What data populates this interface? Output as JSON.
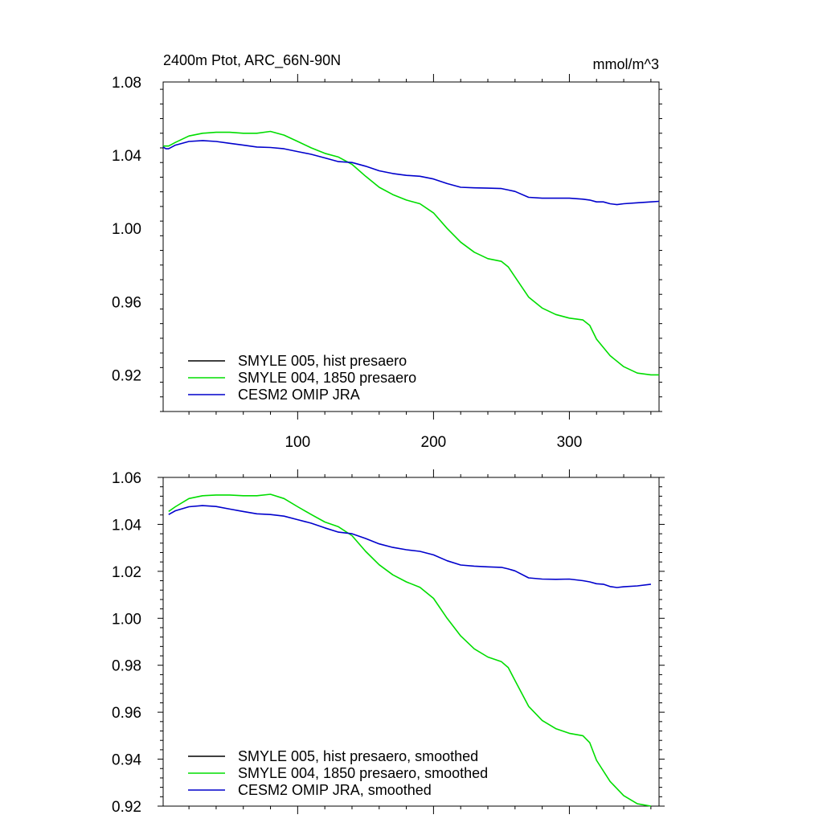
{
  "chart_data": [
    {
      "type": "line",
      "title": "2400m Ptot, ARC_66N-90N",
      "units": "mmol/m^3",
      "xlabel": "",
      "ylabel": "",
      "xlim": [
        1,
        366
      ],
      "ylim": [
        0.9,
        1.08
      ],
      "xticks": [
        100,
        200,
        300
      ],
      "xtick_labels": [
        "100",
        "200",
        "300"
      ],
      "yticks": [
        0.92,
        0.96,
        1.0,
        1.04,
        1.08
      ],
      "ytick_labels": [
        "0.92",
        "0.96",
        "1.00",
        "1.04",
        "1.08"
      ],
      "legend_position": "bottom-left",
      "series": [
        {
          "name": "SMYLE 005, hist presaero",
          "color": "#000000",
          "x": [],
          "y": []
        },
        {
          "name": "SMYLE 004, 1850 presaero",
          "color": "#00dd00",
          "x": [
            1,
            5,
            10,
            20,
            30,
            40,
            50,
            60,
            70,
            80,
            90,
            100,
            110,
            120,
            130,
            140,
            150,
            160,
            170,
            180,
            190,
            200,
            210,
            220,
            230,
            240,
            250,
            255,
            260,
            270,
            280,
            290,
            300,
            310,
            315,
            320,
            330,
            340,
            350,
            360,
            366
          ],
          "y": [
            1.045,
            1.045,
            1.047,
            1.0505,
            1.052,
            1.0525,
            1.0525,
            1.052,
            1.052,
            1.053,
            1.051,
            1.0475,
            1.044,
            1.041,
            1.039,
            1.035,
            1.0285,
            1.0225,
            1.0185,
            1.0155,
            1.0135,
            1.0085,
            1.0,
            0.9925,
            0.987,
            0.9835,
            0.982,
            0.979,
            0.9735,
            0.9625,
            0.9565,
            0.953,
            0.951,
            0.95,
            0.947,
            0.9395,
            0.9305,
            0.9245,
            0.921,
            0.92,
            0.92
          ]
        },
        {
          "name": "CESM2 OMIP JRA",
          "color": "#0000cc",
          "x": [
            1,
            3,
            5,
            10,
            20,
            30,
            40,
            50,
            60,
            70,
            80,
            90,
            100,
            110,
            120,
            130,
            140,
            150,
            160,
            170,
            180,
            190,
            200,
            210,
            220,
            230,
            240,
            250,
            255,
            260,
            270,
            280,
            290,
            300,
            310,
            315,
            320,
            325,
            330,
            335,
            340,
            350,
            360,
            366
          ],
          "y": [
            1.0445,
            1.0435,
            1.0435,
            1.0455,
            1.0475,
            1.048,
            1.0475,
            1.0465,
            1.0455,
            1.0445,
            1.0442,
            1.0435,
            1.042,
            1.0405,
            1.0385,
            1.0365,
            1.036,
            1.034,
            1.0315,
            1.03,
            1.029,
            1.0285,
            1.027,
            1.0245,
            1.0225,
            1.0222,
            1.022,
            1.0218,
            1.021,
            1.0202,
            1.017,
            1.0165,
            1.0165,
            1.0165,
            1.016,
            1.0155,
            1.0145,
            1.0145,
            1.0135,
            1.013,
            1.0135,
            1.014,
            1.0145,
            1.0148
          ]
        }
      ]
    },
    {
      "type": "line",
      "title": "",
      "units": "",
      "xlabel": "",
      "ylabel": "",
      "xlim": [
        1,
        366
      ],
      "ylim": [
        0.92,
        1.06
      ],
      "xticks": [
        100,
        200,
        300
      ],
      "xtick_labels": [],
      "yticks": [
        0.92,
        0.94,
        0.96,
        0.98,
        1.0,
        1.02,
        1.04,
        1.06
      ],
      "ytick_labels": [
        "0.92",
        "0.94",
        "0.96",
        "0.98",
        "1.00",
        "1.02",
        "1.04",
        "1.06"
      ],
      "legend_position": "bottom-left",
      "series": [
        {
          "name": "SMYLE 005, hist presaero, smoothed",
          "color": "#000000",
          "x": [],
          "y": []
        },
        {
          "name": "SMYLE 004, 1850 presaero, smoothed",
          "color": "#00dd00",
          "x": [
            5,
            10,
            20,
            30,
            40,
            50,
            60,
            70,
            80,
            90,
            100,
            110,
            120,
            130,
            140,
            150,
            160,
            170,
            180,
            190,
            200,
            210,
            220,
            230,
            240,
            250,
            255,
            260,
            270,
            280,
            290,
            300,
            310,
            315,
            320,
            330,
            340,
            350,
            360
          ],
          "y": [
            1.0455,
            1.0475,
            1.051,
            1.0522,
            1.0525,
            1.0525,
            1.0522,
            1.0522,
            1.0528,
            1.051,
            1.0475,
            1.0442,
            1.041,
            1.039,
            1.0352,
            1.0285,
            1.0228,
            1.0185,
            1.0155,
            1.0132,
            1.0085,
            1.0,
            0.9925,
            0.987,
            0.9835,
            0.9815,
            0.979,
            0.9735,
            0.9625,
            0.9565,
            0.953,
            0.951,
            0.95,
            0.947,
            0.9395,
            0.9305,
            0.9245,
            0.921,
            0.92
          ]
        },
        {
          "name": "CESM2 OMIP JRA, smoothed",
          "color": "#0000cc",
          "x": [
            5,
            10,
            20,
            30,
            40,
            50,
            60,
            70,
            80,
            90,
            100,
            110,
            120,
            130,
            140,
            150,
            160,
            170,
            180,
            190,
            200,
            210,
            220,
            230,
            240,
            250,
            255,
            260,
            270,
            280,
            290,
            300,
            310,
            315,
            320,
            325,
            330,
            335,
            340,
            350,
            360
          ],
          "y": [
            1.0442,
            1.0458,
            1.0475,
            1.048,
            1.0476,
            1.0465,
            1.0455,
            1.0445,
            1.0442,
            1.0435,
            1.042,
            1.0405,
            1.0385,
            1.0367,
            1.036,
            1.034,
            1.0317,
            1.0302,
            1.0292,
            1.0285,
            1.027,
            1.0245,
            1.0227,
            1.0222,
            1.0219,
            1.0217,
            1.021,
            1.0202,
            1.0172,
            1.0167,
            1.0166,
            1.0167,
            1.016,
            1.0155,
            1.0147,
            1.0145,
            1.0135,
            1.0131,
            1.0134,
            1.0138,
            1.0145
          ]
        }
      ]
    }
  ]
}
